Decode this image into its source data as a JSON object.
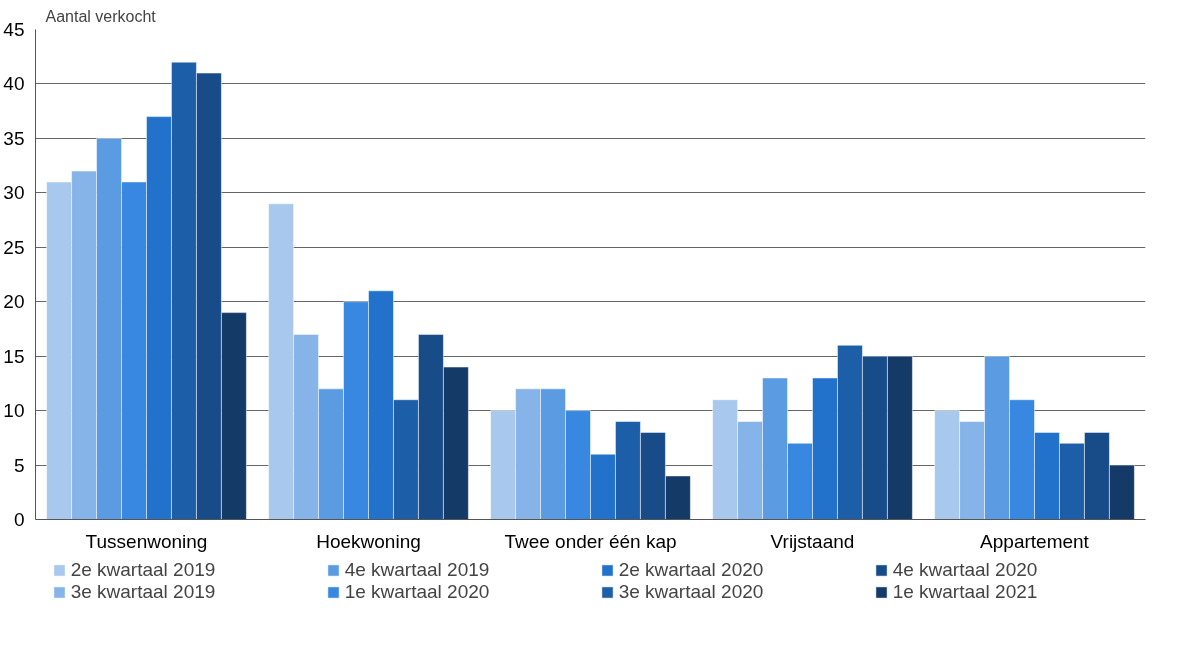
{
  "chart_data": {
    "type": "bar",
    "ylabel": "Aantal verkocht",
    "categories": [
      "Tussenwoning",
      "Hoekwoning",
      "Twee onder één kap",
      "Vrijstaand",
      "Appartement"
    ],
    "series": [
      {
        "name": "2e kwartaal 2019",
        "color": "#a8c8ee",
        "values": [
          31,
          29,
          10,
          11,
          10
        ]
      },
      {
        "name": "3e kwartaal 2019",
        "color": "#86b3e8",
        "values": [
          32,
          17,
          12,
          9,
          9
        ]
      },
      {
        "name": "4e kwartaal 2019",
        "color": "#5a9be2",
        "values": [
          35,
          12,
          12,
          13,
          15
        ]
      },
      {
        "name": "1e kwartaal 2020",
        "color": "#3887e0",
        "values": [
          31,
          20,
          10,
          7,
          11
        ]
      },
      {
        "name": "2e kwartaal 2020",
        "color": "#2272cb",
        "values": [
          37,
          21,
          6,
          13,
          8
        ]
      },
      {
        "name": "3e kwartaal 2020",
        "color": "#1d5ea8",
        "values": [
          42,
          11,
          9,
          16,
          7
        ]
      },
      {
        "name": "4e kwartaal 2020",
        "color": "#184c89",
        "values": [
          41,
          17,
          8,
          15,
          8
        ]
      },
      {
        "name": "1e kwartaal 2021",
        "color": "#143a67",
        "values": [
          19,
          14,
          4,
          15,
          5
        ]
      }
    ],
    "ylim": [
      0,
      45
    ],
    "yticks": [
      0,
      5,
      10,
      15,
      20,
      25,
      30,
      35,
      40,
      45
    ],
    "grid": "y",
    "legend": "bottom"
  }
}
